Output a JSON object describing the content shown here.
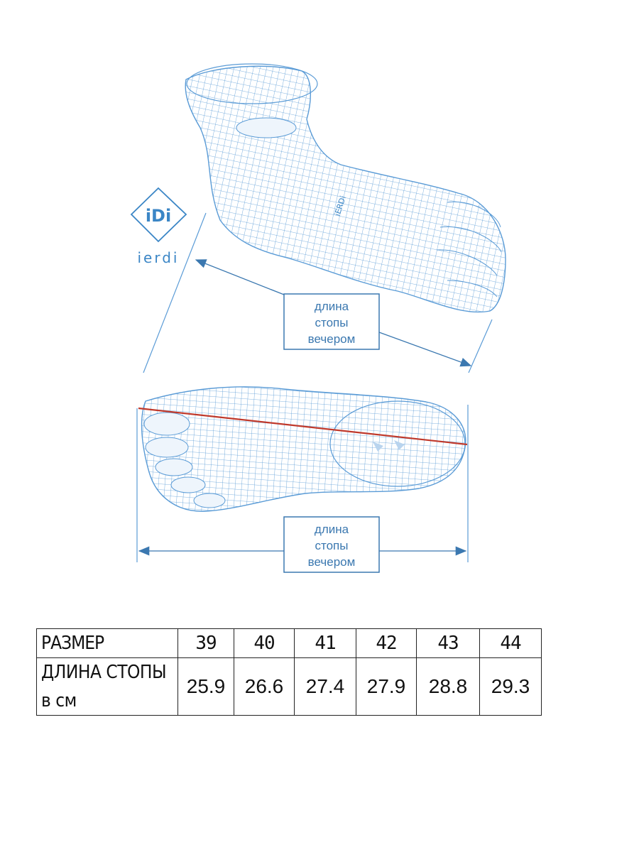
{
  "logo": {
    "mark": "iDi",
    "wordmark": "ierdi",
    "foot_stamp": "iERDi"
  },
  "labels": {
    "top": [
      "длина",
      "стопы",
      "вечером"
    ],
    "bottom": [
      "длина",
      "стопы",
      "вечером"
    ]
  },
  "colors": {
    "mesh": "#5a9bd6",
    "arrow": "#3b78b0",
    "measure_line": "#c0392b"
  },
  "size_table": {
    "header_label": "РАЗМЕР",
    "row_label": "ДЛИНА СТОПЫ в см",
    "row_label_line1": "ДЛИНА СТОПЫ",
    "row_label_line2": "в см",
    "sizes": [
      "39",
      "40",
      "41",
      "42",
      "43",
      "44"
    ],
    "lengths": [
      "25.9",
      "26.6",
      "27.4",
      "27.9",
      "28.8",
      "29.3"
    ]
  }
}
